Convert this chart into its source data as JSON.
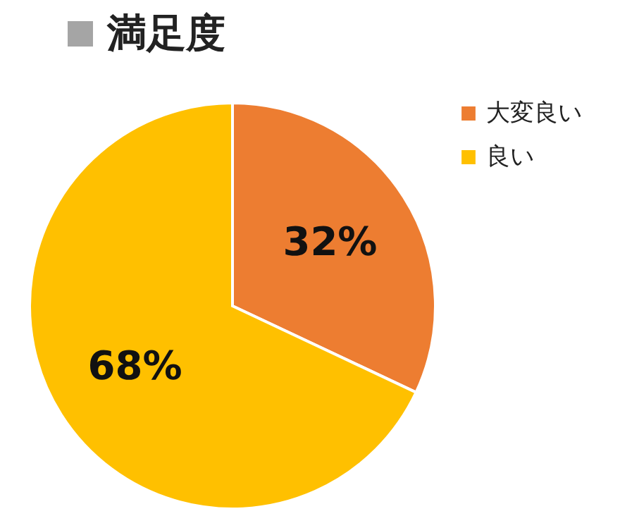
{
  "chart_data": {
    "type": "pie",
    "title": "満足度",
    "categories": [
      "大変良い",
      "良い"
    ],
    "values": [
      32,
      68
    ],
    "colors": [
      "#ed7d31",
      "#ffc000"
    ],
    "value_labels": [
      "32%",
      "68%"
    ],
    "legend": "right"
  }
}
